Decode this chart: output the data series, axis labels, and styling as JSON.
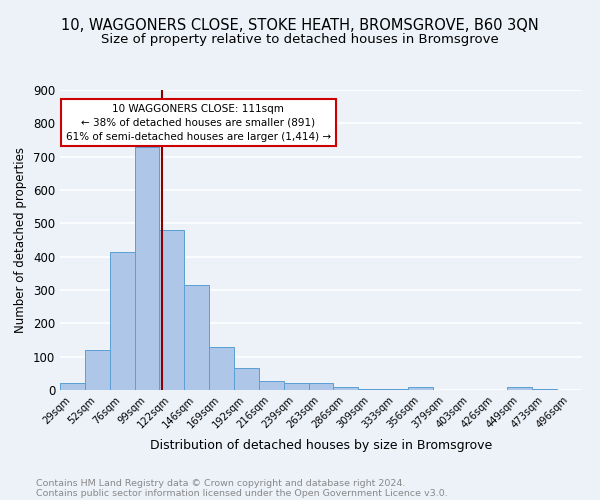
{
  "title1": "10, WAGGONERS CLOSE, STOKE HEATH, BROMSGROVE, B60 3QN",
  "title2": "Size of property relative to detached houses in Bromsgrove",
  "xlabel": "Distribution of detached houses by size in Bromsgrove",
  "ylabel": "Number of detached properties",
  "bin_labels": [
    "29sqm",
    "52sqm",
    "76sqm",
    "99sqm",
    "122sqm",
    "146sqm",
    "169sqm",
    "192sqm",
    "216sqm",
    "239sqm",
    "263sqm",
    "286sqm",
    "309sqm",
    "333sqm",
    "356sqm",
    "379sqm",
    "403sqm",
    "426sqm",
    "449sqm",
    "473sqm",
    "496sqm"
  ],
  "bar_heights": [
    20,
    120,
    415,
    730,
    480,
    315,
    130,
    65,
    28,
    22,
    22,
    8,
    3,
    2,
    8,
    0,
    0,
    0,
    8,
    3,
    0
  ],
  "bar_color": "#aec6e8",
  "bar_edge_color": "#5a9fd4",
  "vline_x": 3.62,
  "vline_color": "#8b0000",
  "annotation_line1": "10 WAGGONERS CLOSE: 111sqm",
  "annotation_line2": "← 38% of detached houses are smaller (891)",
  "annotation_line3": "61% of semi-detached houses are larger (1,414) →",
  "annotation_box_color": "#ffffff",
  "annotation_box_edge": "#cc0000",
  "ylim": [
    0,
    900
  ],
  "yticks": [
    0,
    100,
    200,
    300,
    400,
    500,
    600,
    700,
    800,
    900
  ],
  "footer_line1": "Contains HM Land Registry data © Crown copyright and database right 2024.",
  "footer_line2": "Contains public sector information licensed under the Open Government Licence v3.0.",
  "bg_color": "#edf2f9",
  "plot_bg_color": "#edf2f9",
  "grid_color": "#ffffff",
  "title1_fontsize": 10.5,
  "title2_fontsize": 9.5,
  "xlabel_fontsize": 9,
  "ylabel_fontsize": 8.5,
  "footer_fontsize": 6.8,
  "footer_color": "#888888"
}
